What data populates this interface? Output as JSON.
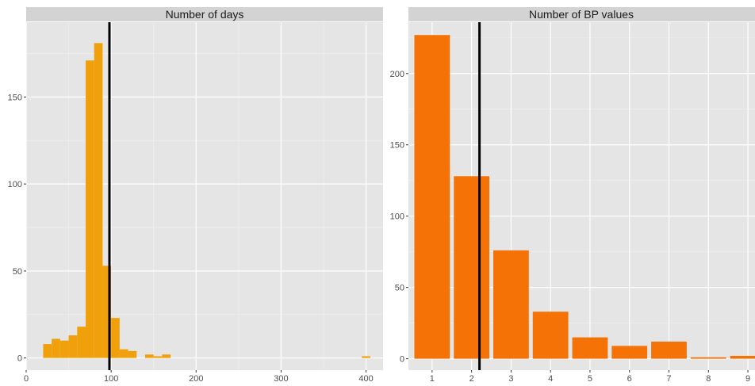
{
  "chart_data": [
    {
      "type": "histogram",
      "title": "Number of days",
      "xlim": [
        0,
        420
      ],
      "ylim": [
        -7,
        193
      ],
      "xticks": [
        0,
        100,
        200,
        300,
        400
      ],
      "yticks": [
        0,
        50,
        100,
        150
      ],
      "bin_width": 10,
      "bins": [
        {
          "x0": 20,
          "x1": 30,
          "count": 8
        },
        {
          "x0": 30,
          "x1": 40,
          "count": 11
        },
        {
          "x0": 40,
          "x1": 50,
          "count": 10
        },
        {
          "x0": 50,
          "x1": 60,
          "count": 13
        },
        {
          "x0": 60,
          "x1": 70,
          "count": 18
        },
        {
          "x0": 70,
          "x1": 80,
          "count": 171
        },
        {
          "x0": 80,
          "x1": 90,
          "count": 181
        },
        {
          "x0": 90,
          "x1": 100,
          "count": 53
        },
        {
          "x0": 100,
          "x1": 110,
          "count": 23
        },
        {
          "x0": 110,
          "x1": 120,
          "count": 5
        },
        {
          "x0": 120,
          "x1": 130,
          "count": 4
        },
        {
          "x0": 140,
          "x1": 150,
          "count": 2
        },
        {
          "x0": 150,
          "x1": 160,
          "count": 1
        },
        {
          "x0": 160,
          "x1": 170,
          "count": 2
        },
        {
          "x0": 395,
          "x1": 405,
          "count": 1
        }
      ],
      "vline": 98,
      "bar_color": "#F0A00A",
      "vline_color": "#000000"
    },
    {
      "type": "bar",
      "title": "Number of BP values",
      "categories": [
        "1",
        "2",
        "3",
        "4",
        "5",
        "6",
        "7",
        "8",
        "9"
      ],
      "values": [
        227,
        128,
        76,
        33,
        15,
        9,
        12,
        1,
        2
      ],
      "ylim": [
        -8,
        236
      ],
      "yticks": [
        0,
        50,
        100,
        150,
        200
      ],
      "vline": 2.2,
      "bar_color": "#F57207",
      "vline_color": "#000000"
    }
  ],
  "colors": {
    "panel_bg": "#E5E5E5",
    "strip_bg": "#D3D3D3",
    "grid_major": "#FFFFFF",
    "grid_minor": "#F0F0F0",
    "tick_label": "#4D4D4D"
  }
}
